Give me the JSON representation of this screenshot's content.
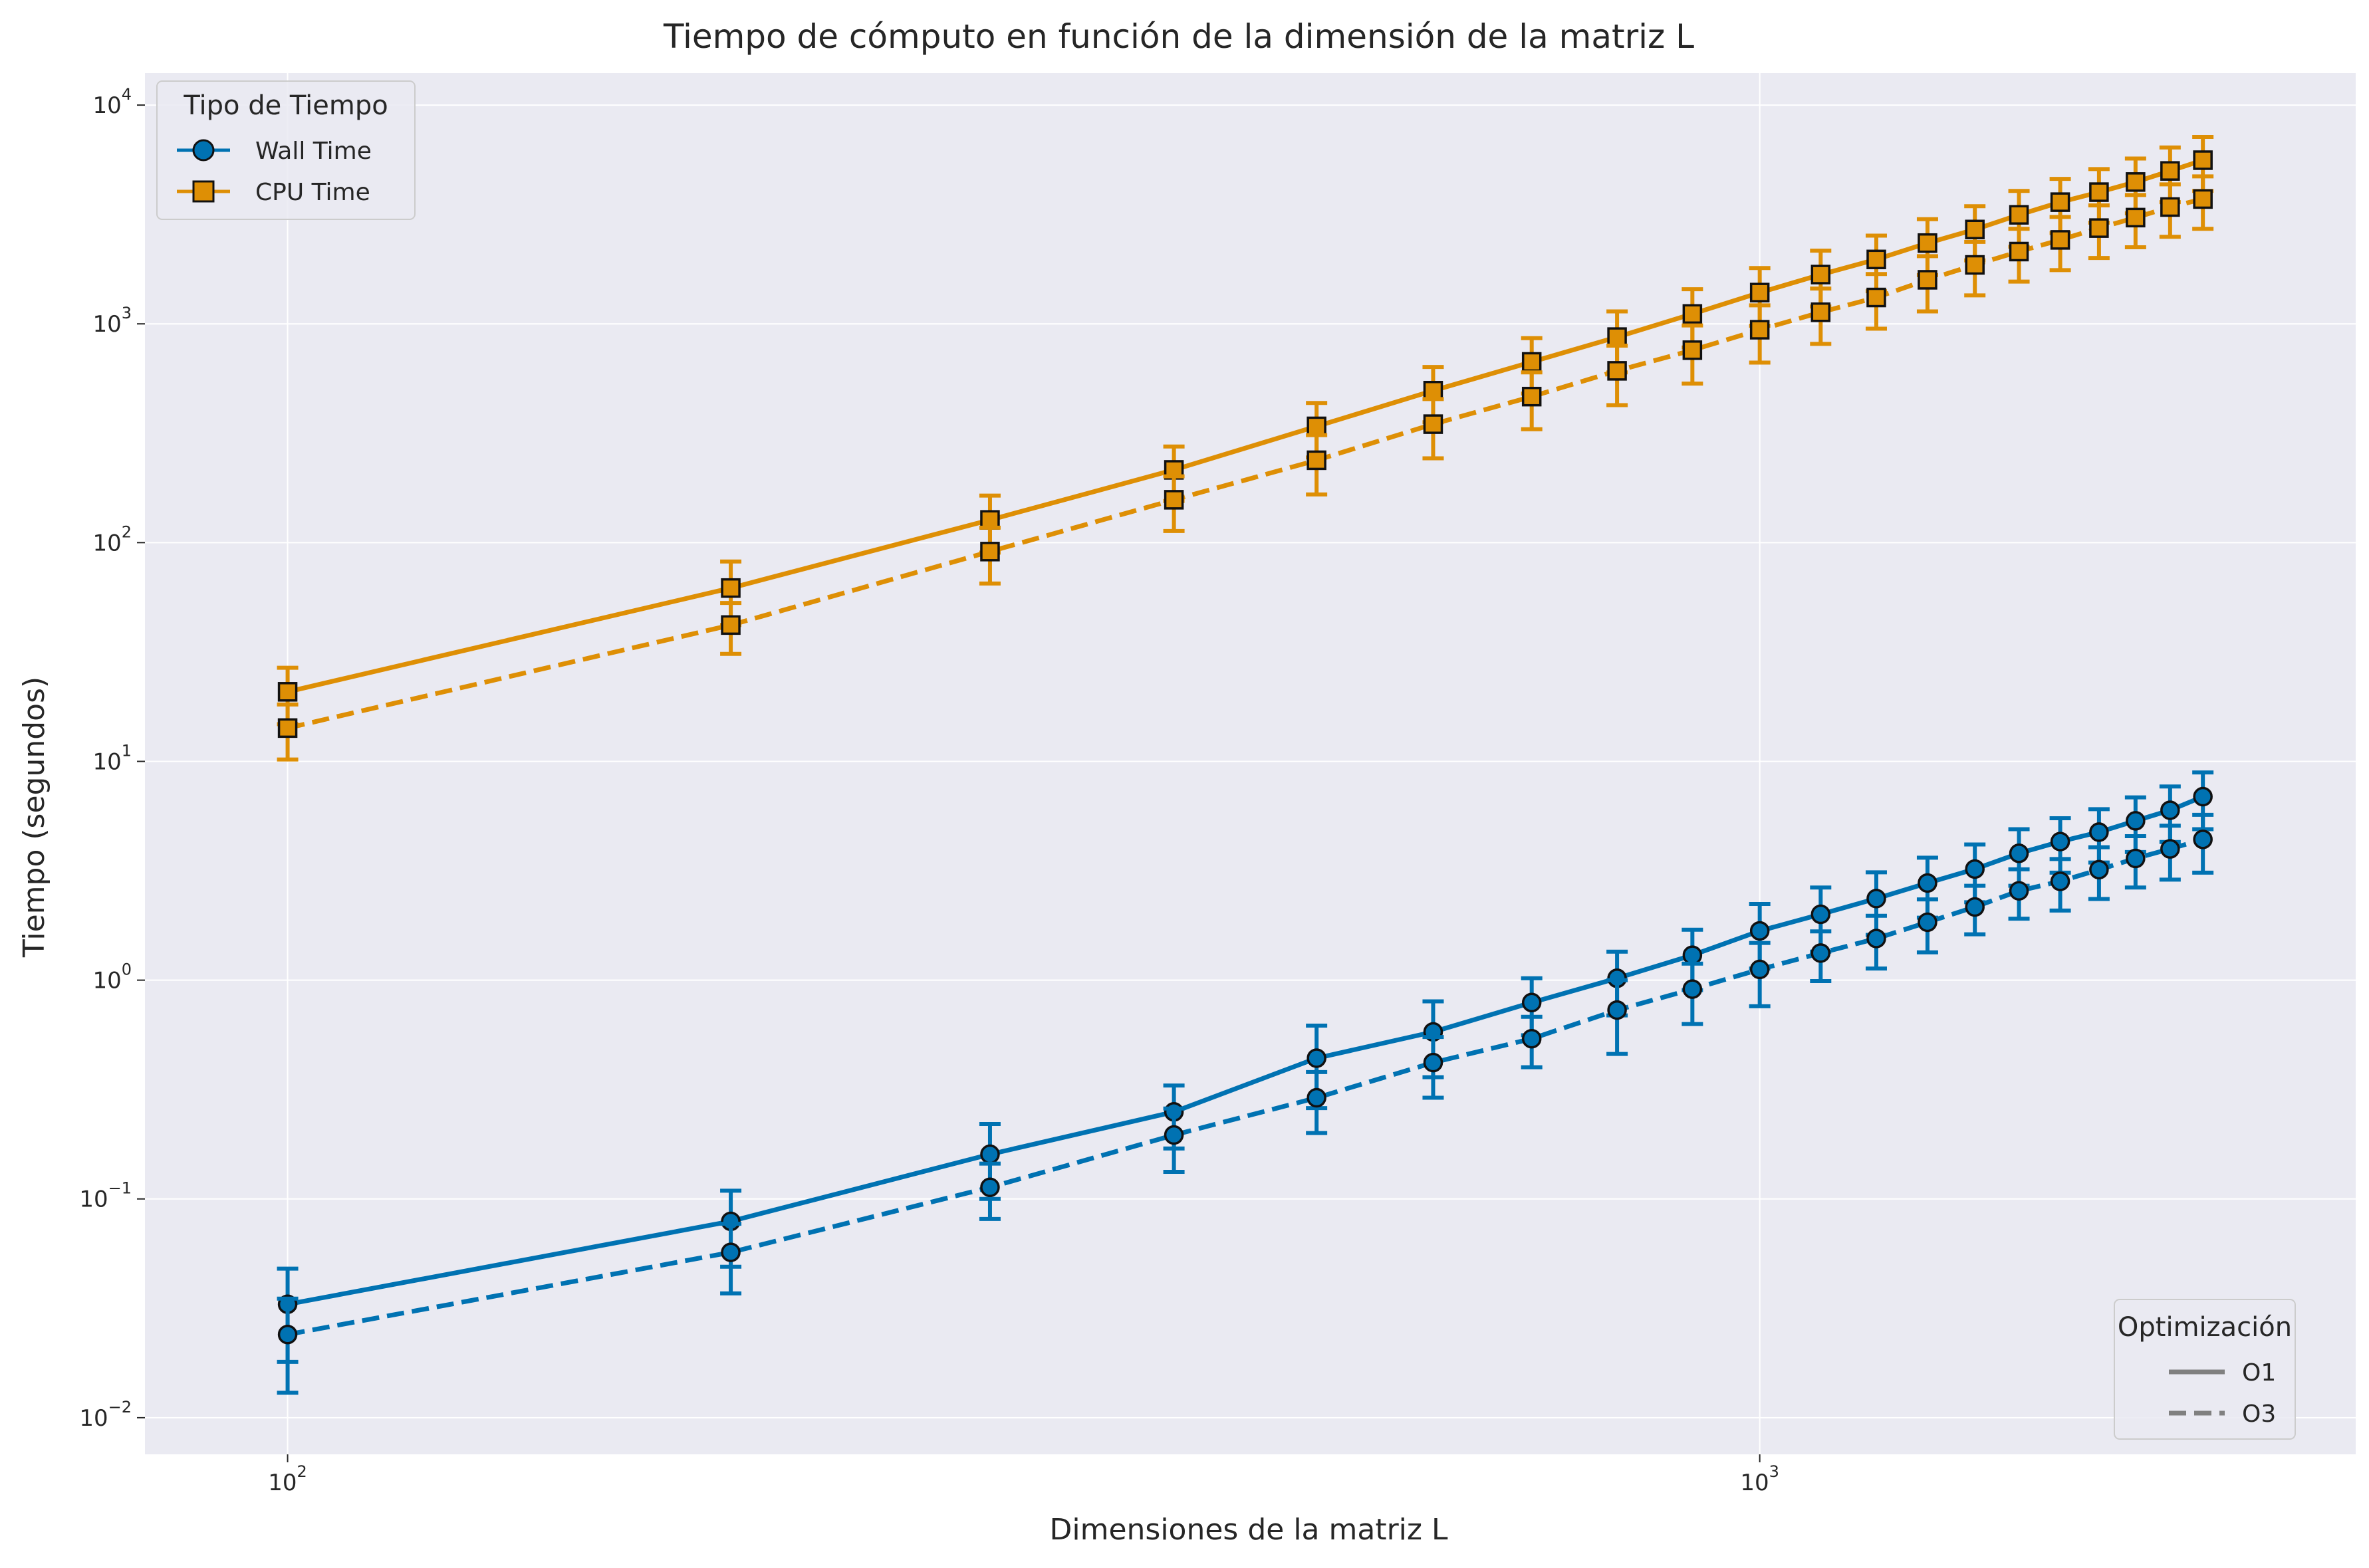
{
  "chart_data": {
    "type": "line",
    "title": "Tiempo de cómputo en función de la dimensión de la matriz L",
    "xlabel": "Dimensiones de la matriz L",
    "ylabel": "Tiempo (segundos)",
    "xscale": "log",
    "yscale": "log",
    "xlim": [
      80,
      2540
    ],
    "ylim": [
      0.0068,
      14000
    ],
    "x_ticks": [
      {
        "base": "10",
        "exp": "2",
        "value": 100
      },
      {
        "base": "10",
        "exp": "3",
        "value": 1000
      }
    ],
    "y_ticks": [
      {
        "base": "10",
        "exp": "−2",
        "value": 0.01
      },
      {
        "base": "10",
        "exp": "−1",
        "value": 0.1
      },
      {
        "base": "10",
        "exp": "0",
        "value": 1
      },
      {
        "base": "10",
        "exp": "1",
        "value": 10
      },
      {
        "base": "10",
        "exp": "2",
        "value": 100
      },
      {
        "base": "10",
        "exp": "3",
        "value": 1000
      },
      {
        "base": "10",
        "exp": "4",
        "value": 10000
      }
    ],
    "grid": true,
    "x": [
      100,
      200,
      300,
      400,
      500,
      600,
      700,
      800,
      900,
      1000,
      1100,
      1200,
      1300,
      1400,
      1500,
      1600,
      1700,
      1800,
      1900,
      2000
    ],
    "series": [
      {
        "type": "Wall Time",
        "opt": "O1",
        "color": "#0072b2",
        "marker": "circle",
        "dash": false,
        "values": [
          0.033,
          0.079,
          0.16,
          0.25,
          0.44,
          0.58,
          0.79,
          1.02,
          1.3,
          1.68,
          2.0,
          2.36,
          2.78,
          3.22,
          3.8,
          4.3,
          4.75,
          5.35,
          5.98,
          6.9
        ],
        "err": [
          0.015,
          0.03,
          0.06,
          0.08,
          0.18,
          0.22,
          0.23,
          0.33,
          0.4,
          0.55,
          0.65,
          0.75,
          0.85,
          0.95,
          1.1,
          1.2,
          1.3,
          1.5,
          1.7,
          2.0
        ]
      },
      {
        "type": "Wall Time",
        "opt": "O3",
        "color": "#0072b2",
        "marker": "circle",
        "dash": true,
        "values": [
          0.024,
          0.057,
          0.113,
          0.196,
          0.29,
          0.42,
          0.54,
          0.73,
          0.91,
          1.12,
          1.33,
          1.55,
          1.84,
          2.16,
          2.56,
          2.83,
          3.2,
          3.6,
          3.98,
          4.4
        ],
        "err": [
          0.011,
          0.02,
          0.032,
          0.063,
          0.09,
          0.13,
          0.14,
          0.27,
          0.28,
          0.36,
          0.34,
          0.42,
          0.5,
          0.54,
          0.65,
          0.75,
          0.85,
          0.95,
          1.1,
          1.3
        ]
      },
      {
        "type": "CPU Time",
        "opt": "O1",
        "color": "#de8f05",
        "marker": "square",
        "dash": false,
        "values": [
          20.8,
          62,
          127,
          215,
          340,
          495,
          670,
          870,
          1110,
          1390,
          1680,
          1970,
          2340,
          2700,
          3150,
          3600,
          4000,
          4450,
          5000,
          5600
        ],
        "err": [
          6,
          20,
          37,
          60,
          95,
          140,
          190,
          270,
          330,
          410,
          480,
          560,
          670,
          750,
          900,
          1000,
          1100,
          1250,
          1400,
          1550
        ]
      },
      {
        "type": "CPU Time",
        "opt": "O3",
        "color": "#de8f05",
        "marker": "square",
        "dash": true,
        "values": [
          14.2,
          42,
          91,
          157,
          238,
          348,
          465,
          610,
          758,
          940,
          1130,
          1320,
          1590,
          1860,
          2140,
          2420,
          2740,
          3060,
          3420,
          3720
        ],
        "err": [
          4,
          11,
          26,
          44,
          72,
          105,
          135,
          185,
          225,
          275,
          320,
          370,
          450,
          510,
          580,
          660,
          740,
          820,
          920,
          1000
        ]
      }
    ],
    "legend_type": {
      "title": "Tipo de Tiempo",
      "placement": "top-left",
      "items": [
        {
          "label": "Wall Time",
          "color": "#0072b2",
          "marker": "circle"
        },
        {
          "label": "CPU Time",
          "color": "#de8f05",
          "marker": "square"
        }
      ]
    },
    "legend_opt": {
      "title": "Optimización",
      "placement": "bottom-right",
      "items": [
        {
          "label": "O1",
          "dash": false,
          "color": "#808080"
        },
        {
          "label": "O3",
          "dash": true,
          "color": "#808080"
        }
      ]
    },
    "colors": {
      "background": "#eaeaf2",
      "grid": "#ffffff",
      "text": "#262626"
    }
  }
}
